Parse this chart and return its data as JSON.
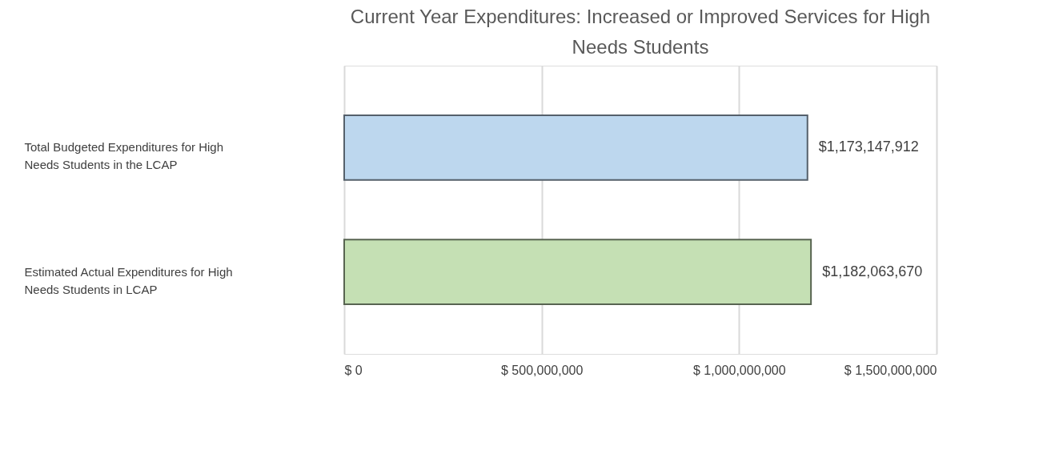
{
  "chart_data": {
    "type": "bar",
    "orientation": "horizontal",
    "title": "Current Year Expenditures: Increased or Improved Services for High Needs Students",
    "categories": [
      "Total Budgeted Expenditures for High Needs Students in the LCAP",
      "Estimated Actual Expenditures for High Needs Students in LCAP"
    ],
    "values": [
      1173147912,
      1182063670
    ],
    "colors": [
      "#bdd7ee",
      "#c5e0b4"
    ],
    "value_labels": [
      "$1,173,147,912",
      "$1,182,063,670"
    ],
    "xlim": [
      0,
      1500000000
    ],
    "xticks": [
      {
        "value": 0,
        "label": "$ 0"
      },
      {
        "value": 500000000,
        "label": "$ 500,000,000"
      },
      {
        "value": 1000000000,
        "label": "$ 1,000,000,000"
      },
      {
        "value": 1500000000,
        "label": "$ 1,500,000,000"
      }
    ],
    "grid": "x"
  }
}
